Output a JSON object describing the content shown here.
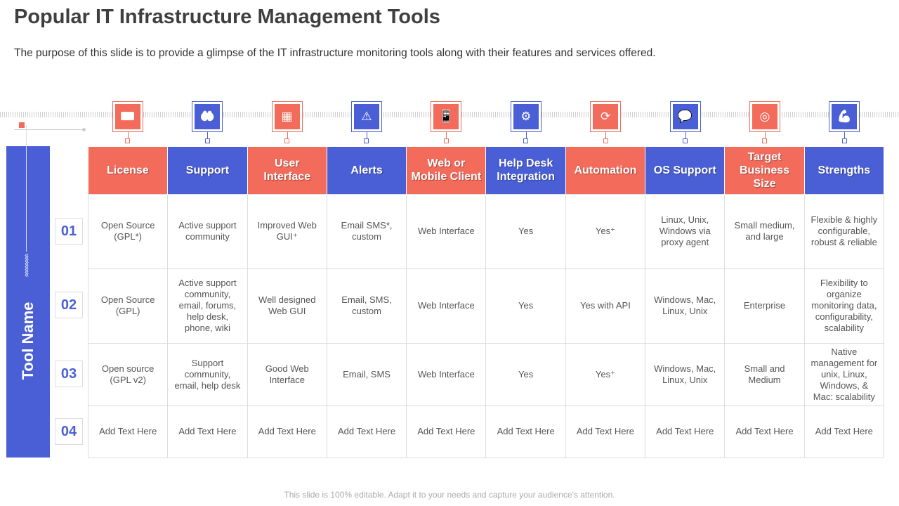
{
  "title": "Popular IT Infrastructure Management Tools",
  "subtitle": "The purpose of this slide is to provide a glimpse of the IT infrastructure  monitoring tools along with their features and services offered.",
  "side_label": "Tool Name",
  "colors": {
    "red": "#f26b5b",
    "blue": "#4a5fd6"
  },
  "columns": [
    {
      "label": "License",
      "icon": "id-badge-icon",
      "color": "red"
    },
    {
      "label": "Support",
      "icon": "hands-support-icon",
      "color": "blue"
    },
    {
      "label": "User Interface",
      "icon": "windows-interface-icon",
      "color": "red"
    },
    {
      "label": "Alerts",
      "icon": "warning-icon",
      "color": "blue"
    },
    {
      "label": "Web or Mobile Client",
      "icon": "mobile-chat-icon",
      "color": "red"
    },
    {
      "label": "Help Desk Integration",
      "icon": "gear-arrow-icon",
      "color": "blue"
    },
    {
      "label": "Automation",
      "icon": "gear-cycle-icon",
      "color": "red"
    },
    {
      "label": "OS Support",
      "icon": "chat-users-icon",
      "color": "blue"
    },
    {
      "label": "Target Business Size",
      "icon": "target-mail-icon",
      "color": "red"
    },
    {
      "label": "Strengths",
      "icon": "muscle-arm-icon",
      "color": "blue"
    }
  ],
  "rows": [
    {
      "num": "01",
      "cells": [
        "Open Source (GPL*)",
        "Active support community",
        "Improved  Web GUI⁺",
        "Email SMS*, custom",
        "Web Interface",
        "Yes",
        "Yes⁺",
        "Linux, Unix, Windows via proxy agent",
        "Small medium, and large",
        "Flexible & highly configurable, robust & reliable"
      ]
    },
    {
      "num": "02",
      "cells": [
        "Open Source (GPL)",
        "Active support community, email, forums, help desk, phone, wiki",
        "Well designed Web GUI",
        "Email, SMS, custom",
        "Web Interface",
        "Yes",
        "Yes with API",
        "Windows, Mac, Linux, Unix",
        "Enterprise",
        "Flexibility to organize monitoring data, configurability, scalability"
      ]
    },
    {
      "num": "03",
      "cells": [
        "Open source (GPL v2)",
        "Support community, email, help desk",
        "Good Web Interface",
        "Email, SMS",
        "Web Interface",
        "Yes",
        "Yes⁺",
        "Windows, Mac, Linux, Unix",
        "Small and Medium",
        "Native management for unix, Linux, Windows, & Mac: scalability"
      ]
    },
    {
      "num": "04",
      "cells": [
        "Add Text Here",
        "Add Text Here",
        "Add Text Here",
        "Add Text Here",
        "Add Text Here",
        "Add Text Here",
        "Add Text Here",
        "Add Text Here",
        "Add Text Here",
        "Add Text Here"
      ]
    }
  ],
  "footer": "This slide is 100% editable. Adapt it to your needs and capture your audience's attention."
}
